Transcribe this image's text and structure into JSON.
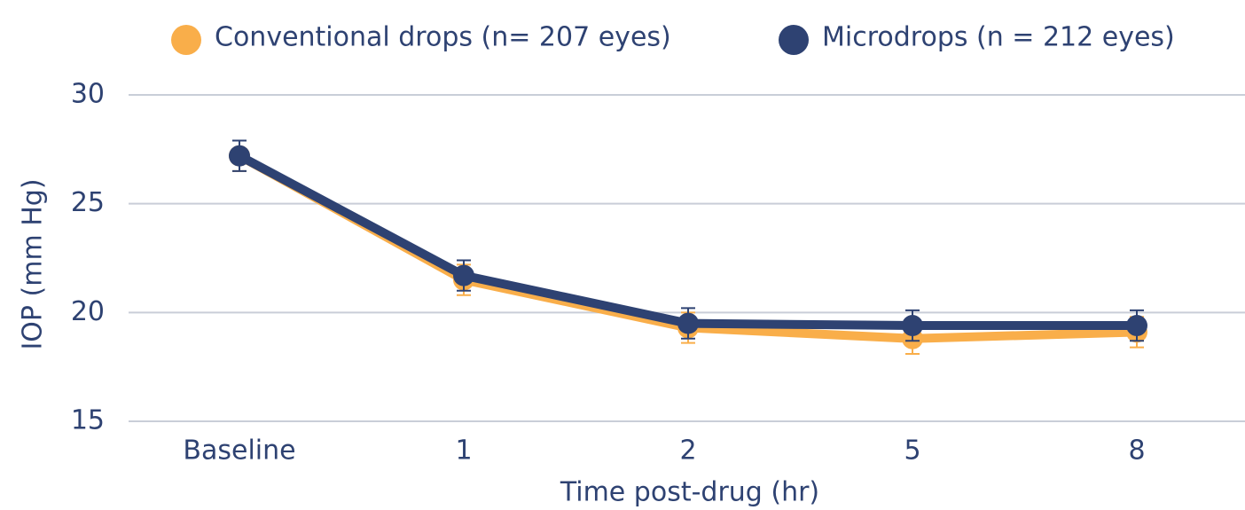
{
  "chart_data": {
    "type": "line",
    "x_label": "Time post-drug (hr)",
    "y_label": "IOP (mm Hg)",
    "categories": [
      "Baseline",
      "1",
      "2",
      "5",
      "8"
    ],
    "series": [
      {
        "name": "Conventional drops (n= 207 eyes)",
        "color": "#f9ae4a",
        "values": [
          27.2,
          21.5,
          19.3,
          18.8,
          19.1
        ],
        "errors": [
          0.7,
          0.7,
          0.7,
          0.7,
          0.7
        ]
      },
      {
        "name": "Microdrops (n = 212 eyes)",
        "color": "#2e4272",
        "values": [
          27.2,
          21.7,
          19.5,
          19.4,
          19.4
        ],
        "errors": [
          0.7,
          0.7,
          0.7,
          0.7,
          0.7
        ]
      }
    ],
    "ylim": [
      15,
      30
    ],
    "yticks": [
      15,
      20,
      25,
      30
    ],
    "grid": true,
    "legend": "top"
  }
}
